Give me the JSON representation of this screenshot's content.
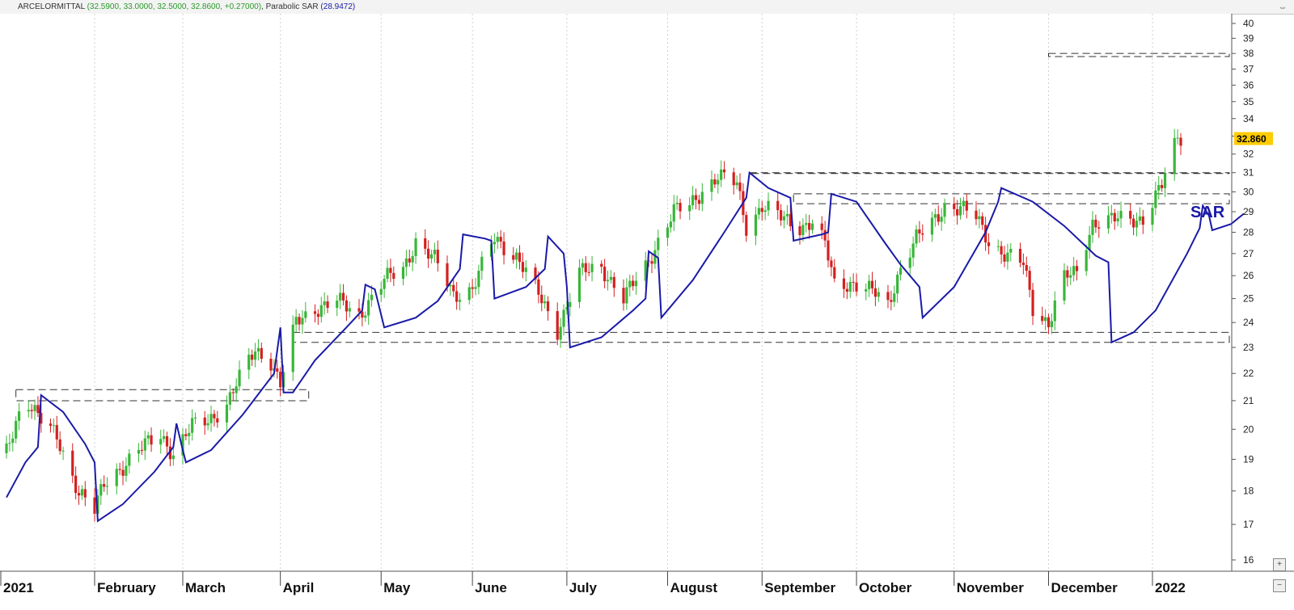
{
  "header": {
    "symbol": "ARCELORMITTAL",
    "ohlc": "(32.5900, 33.0000, 32.5000, 32.8600, +0.27000)",
    "indicator": "Parabolic SAR",
    "indicator_value": "(28.9472)"
  },
  "window_icons": {
    "scroll": "⇔",
    "zoom_in": "+",
    "zoom_out": "−"
  },
  "colors": {
    "up": "#39b639",
    "down": "#d42020",
    "sar": "#1a1aa8",
    "last_price_bg": "#ffcc00",
    "grid": "#cfcfcf"
  },
  "chart_data": {
    "type": "candlestick",
    "y_axis": {
      "min": 16,
      "max": 40,
      "ticks": [
        16,
        17,
        18,
        19,
        20,
        21,
        22,
        23,
        24,
        25,
        26,
        27,
        28,
        29,
        30,
        31,
        32,
        33,
        34,
        35,
        36,
        37,
        38,
        39,
        40
      ],
      "position": "right",
      "scale": "log"
    },
    "x_labels": [
      "2021",
      "February",
      "March",
      "April",
      "May",
      "June",
      "July",
      "August",
      "September",
      "October",
      "November",
      "December",
      "2022"
    ],
    "last_price_label": "32.860",
    "annotation": "SAR",
    "ohlc_waypoints": [
      [
        "2021-01-04",
        19.2
      ],
      [
        "2021-01-08",
        20.6
      ],
      [
        "2021-01-11",
        21.0
      ],
      [
        "2021-01-15",
        20.3
      ],
      [
        "2021-01-20",
        19.7
      ],
      [
        "2021-01-27",
        18.0
      ],
      [
        "2021-02-01",
        17.4
      ],
      [
        "2021-02-04",
        18.2
      ],
      [
        "2021-02-08",
        18.6
      ],
      [
        "2021-02-15",
        19.3
      ],
      [
        "2021-02-22",
        19.8
      ],
      [
        "2021-02-26",
        19.2
      ],
      [
        "2021-03-04",
        20.1
      ],
      [
        "2021-03-09",
        20.3
      ],
      [
        "2021-03-15",
        20.9
      ],
      [
        "2021-03-19",
        21.8
      ],
      [
        "2021-03-24",
        22.9
      ],
      [
        "2021-03-29",
        22.5
      ],
      [
        "2021-04-01",
        21.6
      ],
      [
        "2021-04-06",
        24.0
      ],
      [
        "2021-04-12",
        24.6
      ],
      [
        "2021-04-19",
        24.9
      ],
      [
        "2021-04-26",
        24.3
      ],
      [
        "2021-05-04",
        25.8
      ],
      [
        "2021-05-10",
        26.3
      ],
      [
        "2021-05-14",
        27.6
      ],
      [
        "2021-05-20",
        26.7
      ],
      [
        "2021-05-26",
        25.2
      ],
      [
        "2021-06-01",
        25.4
      ],
      [
        "2021-06-08",
        27.7
      ],
      [
        "2021-06-15",
        26.9
      ],
      [
        "2021-06-21",
        25.4
      ],
      [
        "2021-06-28",
        23.7
      ],
      [
        "2021-07-05",
        26.1
      ],
      [
        "2021-07-12",
        26.4
      ],
      [
        "2021-07-19",
        25.0
      ],
      [
        "2021-07-26",
        26.4
      ],
      [
        "2021-07-30",
        27.6
      ],
      [
        "2021-08-04",
        29.0
      ],
      [
        "2021-08-09",
        29.3
      ],
      [
        "2021-08-13",
        30.1
      ],
      [
        "2021-08-18",
        30.8
      ],
      [
        "2021-08-24",
        30.4
      ],
      [
        "2021-08-27",
        28.3
      ],
      [
        "2021-09-01",
        29.3
      ],
      [
        "2021-09-07",
        28.7
      ],
      [
        "2021-09-13",
        28.3
      ],
      [
        "2021-09-17",
        28.5
      ],
      [
        "2021-09-21",
        27.4
      ],
      [
        "2021-09-24",
        25.6
      ],
      [
        "2021-09-30",
        25.7
      ],
      [
        "2021-10-06",
        25.3
      ],
      [
        "2021-10-11",
        24.7
      ],
      [
        "2021-10-15",
        26.4
      ],
      [
        "2021-10-20",
        27.7
      ],
      [
        "2021-10-25",
        28.4
      ],
      [
        "2021-10-29",
        29.3
      ],
      [
        "2021-11-03",
        29.2
      ],
      [
        "2021-11-08",
        28.7
      ],
      [
        "2021-11-12",
        27.6
      ],
      [
        "2021-11-17",
        27.0
      ],
      [
        "2021-11-23",
        26.5
      ],
      [
        "2021-11-26",
        24.6
      ],
      [
        "2021-12-01",
        24.0
      ],
      [
        "2021-12-06",
        25.9
      ],
      [
        "2021-12-10",
        26.1
      ],
      [
        "2021-12-15",
        28.5
      ],
      [
        "2021-12-20",
        28.6
      ],
      [
        "2021-12-27",
        28.6
      ],
      [
        "2021-12-31",
        28.7
      ],
      [
        "2022-01-04",
        29.8
      ],
      [
        "2022-01-06",
        30.3
      ],
      [
        "2022-01-11",
        32.9
      ]
    ],
    "sar_waypoints": [
      [
        "2021-01-04",
        17.8
      ],
      [
        "2021-01-10",
        18.9
      ],
      [
        "2021-01-14",
        19.4
      ],
      [
        "2021-01-15",
        21.2
      ],
      [
        "2021-01-22",
        20.6
      ],
      [
        "2021-01-29",
        19.5
      ],
      [
        "2021-02-01",
        18.9
      ],
      [
        "2021-02-02",
        17.1
      ],
      [
        "2021-02-10",
        17.6
      ],
      [
        "2021-02-20",
        18.6
      ],
      [
        "2021-02-26",
        19.4
      ],
      [
        "2021-02-27",
        20.2
      ],
      [
        "2021-03-01",
        19.3
      ],
      [
        "2021-03-02",
        18.9
      ],
      [
        "2021-03-10",
        19.3
      ],
      [
        "2021-03-20",
        20.5
      ],
      [
        "2021-03-30",
        22.0
      ],
      [
        "2021-04-01",
        23.8
      ],
      [
        "2021-04-02",
        21.3
      ],
      [
        "2021-04-05",
        21.3
      ],
      [
        "2021-04-12",
        22.5
      ],
      [
        "2021-04-22",
        23.8
      ],
      [
        "2021-04-27",
        24.5
      ],
      [
        "2021-04-28",
        25.6
      ],
      [
        "2021-05-01",
        25.4
      ],
      [
        "2021-05-04",
        23.8
      ],
      [
        "2021-05-14",
        24.2
      ],
      [
        "2021-05-21",
        24.9
      ],
      [
        "2021-05-28",
        26.3
      ],
      [
        "2021-05-29",
        27.9
      ],
      [
        "2021-06-05",
        27.7
      ],
      [
        "2021-06-07",
        27.6
      ],
      [
        "2021-06-08",
        25.0
      ],
      [
        "2021-06-18",
        25.5
      ],
      [
        "2021-06-24",
        26.3
      ],
      [
        "2021-06-25",
        27.8
      ],
      [
        "2021-06-30",
        27.0
      ],
      [
        "2021-07-01",
        25.5
      ],
      [
        "2021-07-02",
        23.0
      ],
      [
        "2021-07-12",
        23.4
      ],
      [
        "2021-07-22",
        24.5
      ],
      [
        "2021-07-26",
        25.0
      ],
      [
        "2021-07-27",
        27.1
      ],
      [
        "2021-07-30",
        26.8
      ],
      [
        "2021-07-31",
        24.2
      ],
      [
        "2021-08-10",
        25.8
      ],
      [
        "2021-08-20",
        28.0
      ],
      [
        "2021-08-27",
        29.7
      ],
      [
        "2021-08-28",
        31.0
      ],
      [
        "2021-09-03",
        30.2
      ],
      [
        "2021-09-10",
        29.7
      ],
      [
        "2021-09-11",
        27.6
      ],
      [
        "2021-09-20",
        27.9
      ],
      [
        "2021-09-22",
        28.0
      ],
      [
        "2021-09-23",
        29.9
      ],
      [
        "2021-10-01",
        29.5
      ],
      [
        "2021-10-10",
        27.5
      ],
      [
        "2021-10-15",
        26.5
      ],
      [
        "2021-10-21",
        25.5
      ],
      [
        "2021-10-22",
        24.2
      ],
      [
        "2021-11-01",
        25.5
      ],
      [
        "2021-11-11",
        28.0
      ],
      [
        "2021-11-15",
        29.5
      ],
      [
        "2021-11-16",
        30.2
      ],
      [
        "2021-11-26",
        29.5
      ],
      [
        "2021-12-06",
        28.3
      ],
      [
        "2021-12-16",
        26.9
      ],
      [
        "2021-12-20",
        26.6
      ],
      [
        "2021-12-21",
        23.2
      ],
      [
        "2021-12-28",
        23.6
      ],
      [
        "2022-01-04",
        24.5
      ],
      [
        "2022-01-14",
        27.0
      ],
      [
        "2022-01-18",
        28.2
      ],
      [
        "2022-01-19",
        29.3
      ],
      [
        "2022-01-21",
        28.8
      ],
      [
        "2022-01-22",
        28.1
      ],
      [
        "2022-01-28",
        28.4
      ],
      [
        "2022-02-01",
        28.9
      ]
    ],
    "support_resistance_boxes": [
      {
        "from": "2021-01-07",
        "to": "2021-04-10",
        "y1": 21.0,
        "y2": 21.4
      },
      {
        "from": "2021-04-05",
        "to": "2022-03-01",
        "y1": 23.2,
        "y2": 23.6
      },
      {
        "from": "2021-08-28",
        "to": "2022-02-21",
        "y1": 31.0,
        "y2": 31.0
      },
      {
        "from": "2021-09-11",
        "to": "2022-02-26",
        "y1": 29.4,
        "y2": 29.9
      },
      {
        "from": "2021-12-01",
        "to": "2022-03-05",
        "y1": 37.8,
        "y2": 38.0
      }
    ]
  }
}
